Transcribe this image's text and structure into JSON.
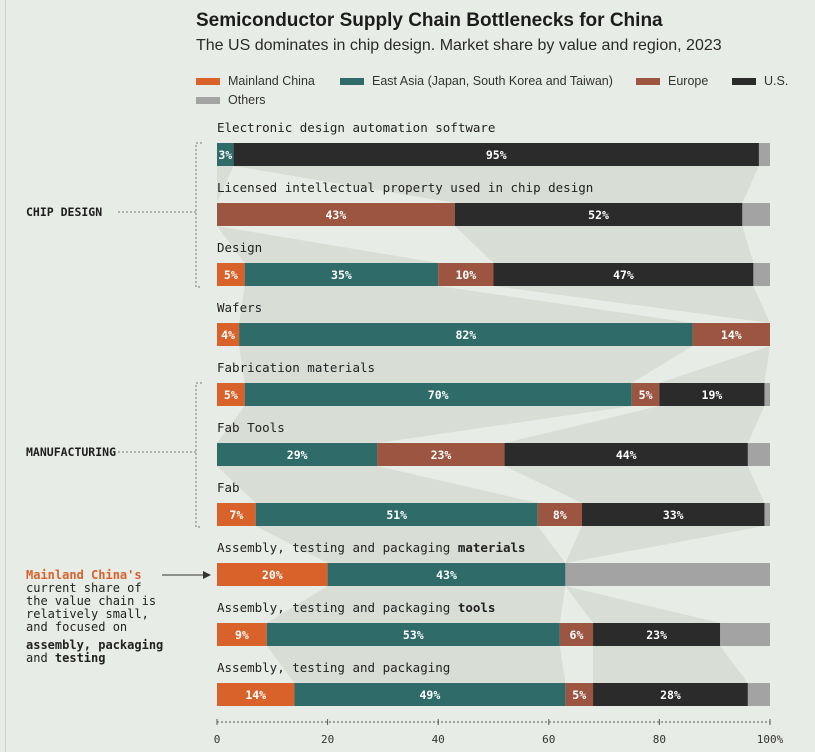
{
  "title": "Semiconductor Supply Chain Bottlenecks for China",
  "subtitle": "The US dominates in chip design. Market share by value and region, 2023",
  "legend": [
    {
      "label": "Mainland China",
      "color": "#d9622b"
    },
    {
      "label": "East Asia (Japan, South Korea and Taiwan)",
      "color": "#2e6b69"
    },
    {
      "label": "Europe",
      "color": "#9c5540"
    },
    {
      "label": "U.S.",
      "color": "#2b2b2b"
    },
    {
      "label": "Others",
      "color": "#a3a3a3"
    }
  ],
  "groups": [
    {
      "label": "CHIP DESIGN"
    },
    {
      "label": "MANUFACTURING"
    }
  ],
  "annotation": {
    "highlight": "Mainland China's",
    "line1": "current share of",
    "line2": "the value chain is",
    "line3": "relatively small,",
    "line4": "and focused on",
    "bold1": "assembly, packaging",
    "line5_prefix": "and ",
    "bold2": "testing"
  },
  "chart_data": {
    "type": "bar",
    "orientation": "horizontal",
    "stacked": true,
    "xlim": [
      0,
      100
    ],
    "x_ticks": [
      "0",
      "20",
      "40",
      "60",
      "80",
      "100%"
    ],
    "categories": [
      {
        "label": "Electronic design automation software",
        "bold": ""
      },
      {
        "label": "Licensed intellectual property used in chip design",
        "bold": ""
      },
      {
        "label": "Design",
        "bold": ""
      },
      {
        "label": "Wafers",
        "bold": ""
      },
      {
        "label": "Fabrication materials",
        "bold": ""
      },
      {
        "label": "Fab Tools",
        "bold": ""
      },
      {
        "label": "Fab",
        "bold": ""
      },
      {
        "label": "Assembly, testing and packaging ",
        "bold": "materials"
      },
      {
        "label": "Assembly, testing and packaging ",
        "bold": "tools"
      },
      {
        "label": "Assembly, testing and packaging",
        "bold": ""
      }
    ],
    "series": [
      {
        "name": "Mainland China",
        "color": "#d9622b",
        "values": [
          0,
          0,
          5,
          4,
          5,
          0,
          7,
          20,
          9,
          14
        ],
        "labels": [
          "",
          "",
          "5%",
          "4%",
          "5%",
          "",
          "7%",
          "20%",
          "9%",
          "14%"
        ]
      },
      {
        "name": "East Asia (Japan, South Korea and Taiwan)",
        "color": "#2e6b69",
        "values": [
          3,
          0,
          35,
          82,
          70,
          29,
          51,
          43,
          53,
          49
        ],
        "labels": [
          "3%",
          "",
          "35%",
          "82%",
          "70%",
          "29%",
          "51%",
          "43%",
          "53%",
          "49%"
        ]
      },
      {
        "name": "Europe",
        "color": "#9c5540",
        "values": [
          0,
          43,
          10,
          14,
          5,
          23,
          8,
          0,
          6,
          5
        ],
        "labels": [
          "",
          "43%",
          "10%",
          "14%",
          "5%",
          "23%",
          "8%",
          "",
          "6%",
          "5%"
        ]
      },
      {
        "name": "U.S.",
        "color": "#2b2b2b",
        "values": [
          95,
          52,
          47,
          0,
          19,
          44,
          33,
          0,
          23,
          28
        ],
        "labels": [
          "95%",
          "52%",
          "47%",
          "",
          "19%",
          "44%",
          "33%",
          "",
          "23%",
          "28%"
        ]
      },
      {
        "name": "Others",
        "color": "#a3a3a3",
        "values": [
          2,
          5,
          3,
          0,
          1,
          4,
          1,
          37,
          9,
          4
        ],
        "labels": [
          "",
          "",
          "",
          "",
          "",
          "",
          "",
          "",
          "",
          ""
        ]
      }
    ]
  }
}
